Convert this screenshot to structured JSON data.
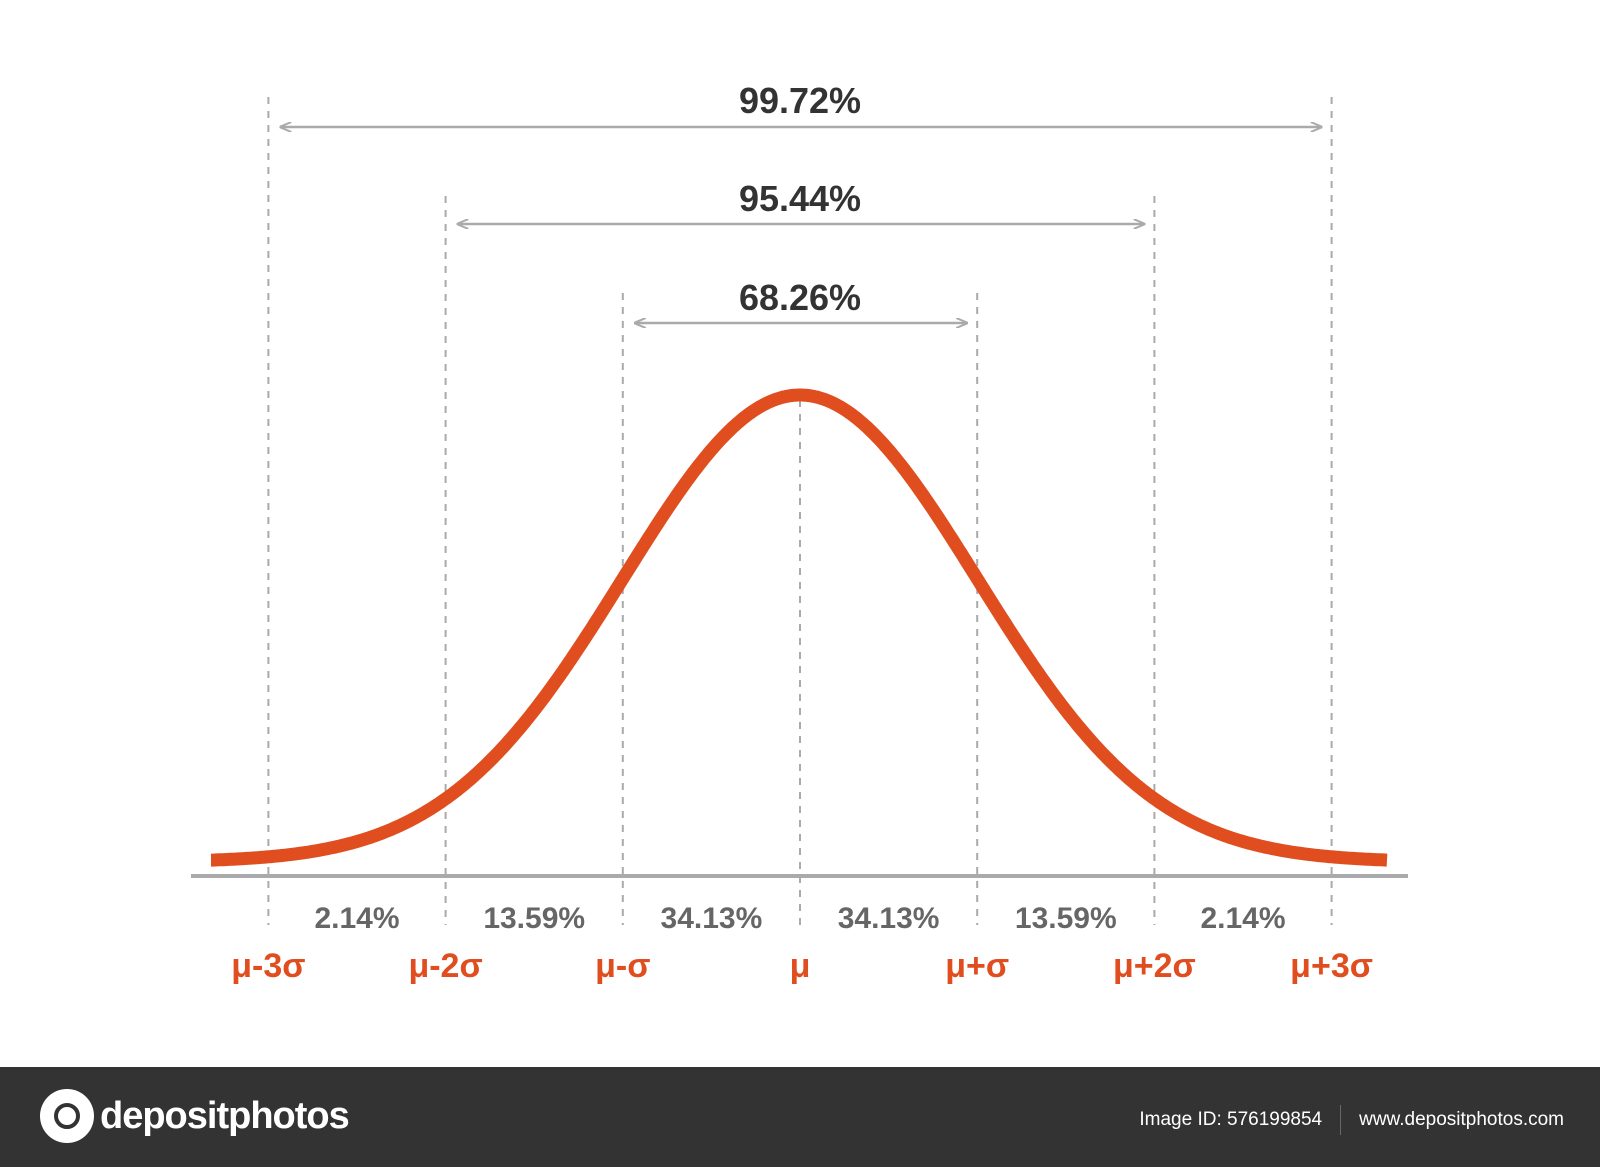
{
  "chart_data": {
    "type": "line",
    "curve": "normal distribution",
    "sigma_labels": [
      "μ-3σ",
      "μ-2σ",
      "μ-σ",
      "μ",
      "μ+σ",
      "μ+2σ",
      "μ+3σ"
    ],
    "segment_percentages": [
      "2.14%",
      "13.59%",
      "34.13%",
      "34.13%",
      "13.59%",
      "2.14%"
    ],
    "ranges": [
      {
        "label": "68.26%",
        "from": -1,
        "to": 1
      },
      {
        "label": "95.44%",
        "from": -2,
        "to": 2
      },
      {
        "label": "99.72%",
        "from": -3,
        "to": 3
      }
    ],
    "colors": {
      "curve": "#e04e1f",
      "sigma_label": "#e04e1f",
      "percent": "#666666",
      "range_label": "#333333",
      "guides": "#aaaaaa"
    }
  },
  "footer": {
    "brand": "depositphotos",
    "image_id": "Image ID: 576199854",
    "website": "www.depositphotos.com"
  }
}
